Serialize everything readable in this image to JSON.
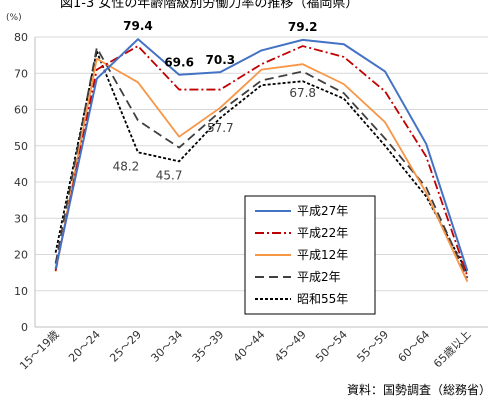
{
  "chart_data": {
    "type": "line",
    "title": "図1-3 女性の年齢階級別労働力率の推移（福岡県）",
    "y_unit_label": "(%)",
    "ylim": [
      0,
      80
    ],
    "yticks": [
      0,
      10,
      20,
      30,
      40,
      50,
      60,
      70,
      80
    ],
    "categories": [
      "15～19歳",
      "20～24",
      "25～29",
      "30～34",
      "35～39",
      "40～44",
      "45～49",
      "50～54",
      "55～59",
      "60～64",
      "65歳以上"
    ],
    "series": [
      {
        "name": "平成27年",
        "color": "#4472c4",
        "dash": "solid",
        "values": [
          16,
          68.5,
          79.4,
          69.6,
          70.3,
          76.3,
          79.2,
          78,
          70.5,
          50.5,
          15.5
        ]
      },
      {
        "name": "平成22年",
        "color": "#c00000",
        "dash": "dashdot",
        "values": [
          15.5,
          71,
          77.5,
          65.5,
          65.5,
          72.5,
          77.5,
          74.5,
          65,
          47,
          14
        ]
      },
      {
        "name": "平成12年",
        "color": "#f79646",
        "dash": "solid",
        "values": [
          15.3,
          74,
          67.5,
          52.5,
          60.5,
          71,
          72.5,
          67,
          56.5,
          37,
          12.5
        ]
      },
      {
        "name": "平成2年",
        "color": "#404040",
        "dash": "longdash",
        "values": [
          17.5,
          77,
          57,
          49.5,
          59.5,
          68,
          70.5,
          64.5,
          52,
          38.5,
          13.5
        ]
      },
      {
        "name": "昭和55年",
        "color": "#000000",
        "dash": "dotted",
        "values": [
          20.5,
          76,
          48.2,
          45.7,
          57.7,
          66.7,
          67.8,
          63,
          50,
          36,
          15
        ]
      }
    ],
    "annotations": [
      {
        "text": "79.4",
        "category": "25～29",
        "value": 79.4,
        "bold": true
      },
      {
        "text": "69.6",
        "category": "30～34",
        "value": 69.6,
        "bold": true
      },
      {
        "text": "70.3",
        "category": "35～39",
        "value": 70.3,
        "bold": true
      },
      {
        "text": "79.2",
        "category": "45～49",
        "value": 79.2,
        "bold": true
      },
      {
        "text": "57.7",
        "category": "35～39",
        "value": 57.7,
        "bold": false
      },
      {
        "text": "67.8",
        "category": "45～49",
        "value": 67.8,
        "bold": false
      },
      {
        "text": "48.2",
        "category": "25～29",
        "value": 48.2,
        "bold": false
      },
      {
        "text": "45.7",
        "category": "30～34",
        "value": 45.7,
        "bold": false
      }
    ],
    "legend_position": "lower-right",
    "grid": "horizontal",
    "source": "資料：国勢調査（総務省）"
  }
}
